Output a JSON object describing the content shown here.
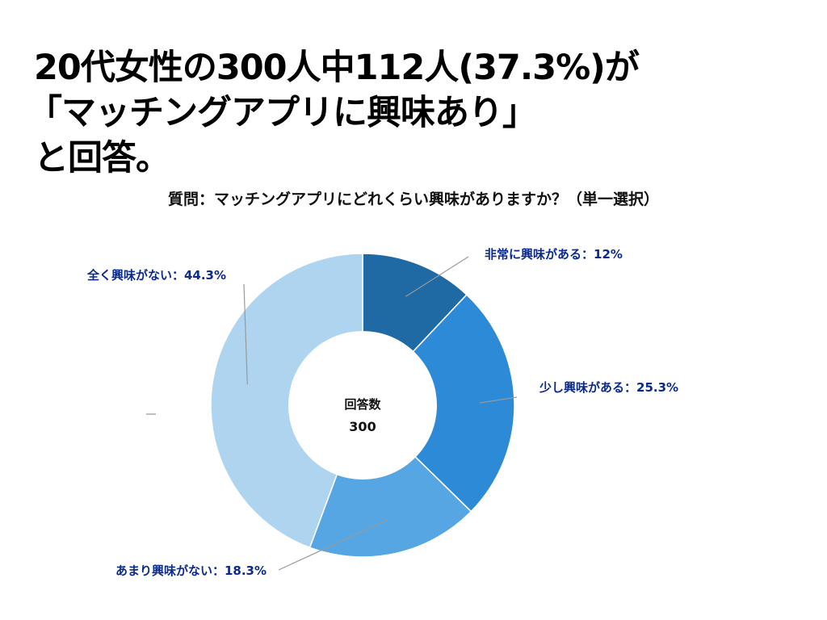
{
  "headline": {
    "line1": "20代女性の300人中112人(37.3%)が",
    "line2": "「マッチングアプリに興味あり」",
    "line3": "と回答。"
  },
  "question": "質問：マッチングアプリにどれくらい興味がありますか？（単一選択）",
  "chart_data": {
    "type": "pie",
    "donut": true,
    "center_label": "回答数",
    "center_value": "300",
    "slices": [
      {
        "label": "非常に興味がある：12%",
        "value": 12,
        "color": "#1f6aa5"
      },
      {
        "label": "少し興味がある：25.3%",
        "value": 25.3,
        "color": "#2c8ad6"
      },
      {
        "label": "あまり興味がない：18.3%",
        "value": 18.3,
        "color": "#55a6e2"
      },
      {
        "label": "全く興味がない：44.3%",
        "value": 44.3,
        "color": "#aed4ef"
      }
    ]
  }
}
